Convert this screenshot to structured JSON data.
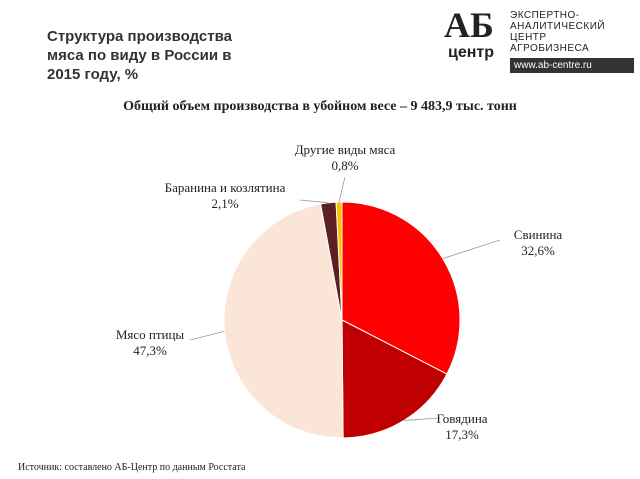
{
  "header": {
    "title": "Структура производства мяса по виду в России в 2015 году, %",
    "logo": {
      "mark": "АБ",
      "sub": "центр",
      "lines": [
        "ЭКСПЕРТНО-",
        "АНАЛИТИЧЕСКИЙ",
        "ЦЕНТР",
        "АГРОБИЗНЕСА"
      ],
      "url": "www.ab-centre.ru"
    }
  },
  "chart_data": {
    "type": "pie",
    "title": "Общий объем производства  в убойном весе – 9 483,9 тыс. тонн",
    "categories": [
      "Свинина",
      "Говядина",
      "Мясо птицы",
      "Баранина и козлятина",
      "Другие виды мяса"
    ],
    "values": [
      32.6,
      17.3,
      47.3,
      2.1,
      0.8
    ],
    "value_labels": [
      "32,6%",
      "17,3%",
      "47,3%",
      "2,1%",
      "0,8%"
    ],
    "colors": [
      "#ff0000",
      "#c00000",
      "#fbe5d6",
      "#5c1f24",
      "#ffc000"
    ]
  },
  "footer": {
    "source": "Источник:  составлено АБ-Центр  по данным Росстата"
  }
}
